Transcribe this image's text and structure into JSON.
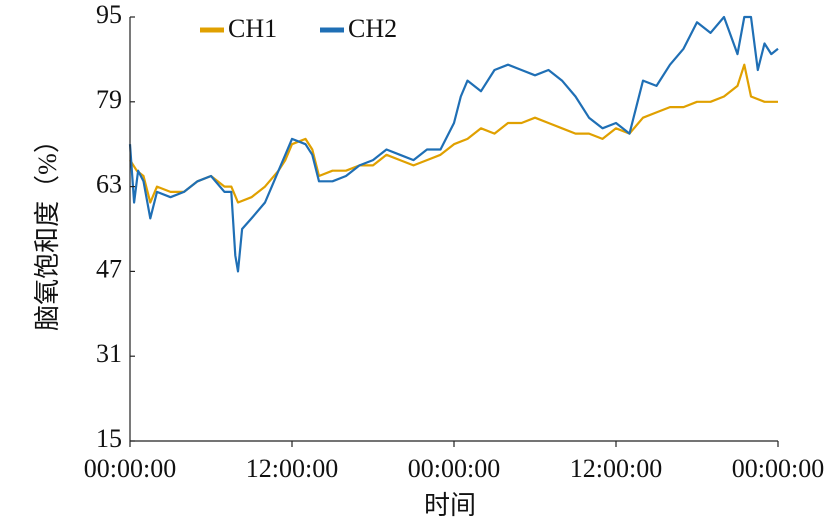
{
  "chart_data": {
    "type": "line",
    "xlabel": "时间",
    "ylabel": "脑氧饱和度（%）",
    "xlim": [
      0,
      48
    ],
    "xticks": [
      {
        "value": 0,
        "label": "00:00:00"
      },
      {
        "value": 12,
        "label": "12:00:00"
      },
      {
        "value": 24,
        "label": "00:00:00"
      },
      {
        "value": 36,
        "label": "12:00:00"
      },
      {
        "value": 48,
        "label": "00:00:00"
      }
    ],
    "ylim": [
      15,
      95
    ],
    "yticks": [
      15,
      31,
      47,
      63,
      79,
      95
    ],
    "legend": "top-left",
    "series": [
      {
        "name": "CH1",
        "color": "#e0a000",
        "x": [
          0,
          0.5,
          1,
          1.5,
          2,
          3,
          4,
          5,
          6,
          7,
          7.5,
          8,
          9,
          10,
          11,
          11.5,
          12,
          13,
          13.5,
          14,
          15,
          16,
          17,
          18,
          19,
          20,
          21,
          22,
          23,
          24,
          25,
          26,
          27,
          28,
          29,
          30,
          31,
          32,
          33,
          34,
          35,
          36,
          37,
          38,
          39,
          40,
          41,
          42,
          43,
          44,
          45,
          45.5,
          46,
          47,
          48
        ],
        "values": [
          68,
          66,
          65,
          60,
          63,
          62,
          62,
          64,
          65,
          63,
          63,
          60,
          61,
          63,
          66,
          68,
          71,
          72,
          70,
          65,
          66,
          66,
          67,
          67,
          69,
          68,
          67,
          68,
          69,
          71,
          72,
          74,
          73,
          75,
          75,
          76,
          75,
          74,
          73,
          73,
          72,
          74,
          73,
          76,
          77,
          78,
          78,
          79,
          79,
          80,
          82,
          86,
          80,
          79,
          79
        ]
      },
      {
        "name": "CH2",
        "color": "#1f6fb5",
        "x": [
          0,
          0.3,
          0.6,
          1,
          1.5,
          2,
          3,
          4,
          5,
          6,
          7,
          7.5,
          7.8,
          8,
          8.3,
          9,
          10,
          10.5,
          11,
          11.5,
          12,
          13,
          13.5,
          14,
          15,
          16,
          17,
          18,
          19,
          20,
          21,
          22,
          23,
          24,
          24.5,
          25,
          26,
          27,
          28,
          29,
          30,
          31,
          32,
          33,
          34,
          35,
          36,
          37,
          38,
          39,
          40,
          41,
          42,
          43,
          44,
          45,
          45.5,
          46,
          46.5,
          47,
          47.5,
          48
        ],
        "values": [
          71,
          60,
          66,
          64,
          57,
          62,
          61,
          62,
          64,
          65,
          62,
          62,
          50,
          47,
          55,
          57,
          60,
          63,
          66,
          69,
          72,
          71,
          69,
          64,
          64,
          65,
          67,
          68,
          70,
          69,
          68,
          70,
          70,
          75,
          80,
          83,
          81,
          85,
          86,
          85,
          84,
          85,
          83,
          80,
          76,
          74,
          75,
          73,
          83,
          82,
          86,
          89,
          94,
          92,
          95,
          88,
          95,
          95,
          85,
          90,
          88,
          89
        ]
      }
    ]
  }
}
